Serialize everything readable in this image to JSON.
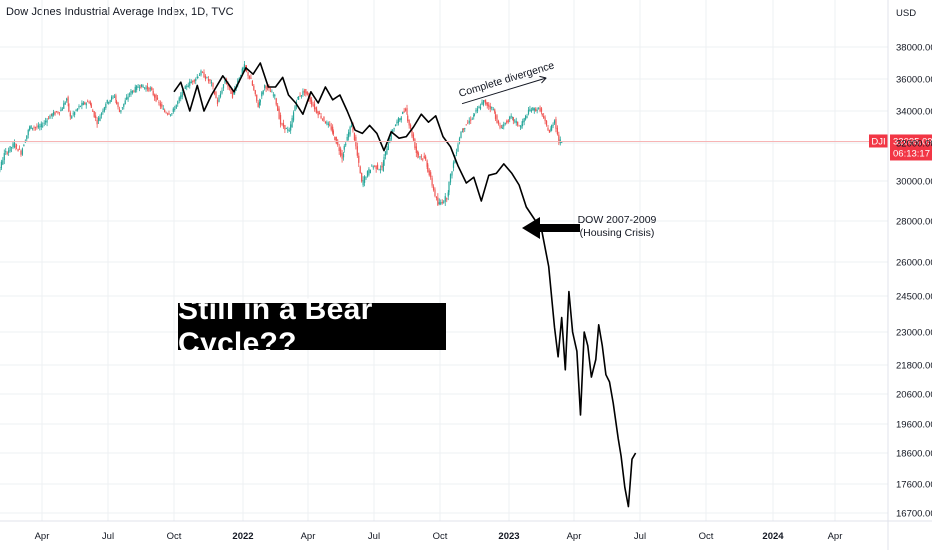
{
  "chart_data": {
    "type": "line",
    "title": "Dow Jones Industrial Average Index, 1D, TVC",
    "currency": "USD",
    "ticker": "DJI",
    "last_price": "32095.09",
    "countdown": "06:13:17",
    "y_ticks": [
      38000,
      36000,
      34000,
      32000,
      30000,
      28000,
      26000,
      24500,
      23000,
      21800,
      20600,
      19600,
      18600,
      17600,
      16700
    ],
    "y_tick_labels": [
      "38000.00",
      "36000.00",
      "34000.00",
      "32000.00",
      "30000.00",
      "28000.00",
      "26000.00",
      "24500.00",
      "23000.00",
      "21800.00",
      "20600.00",
      "19600.00",
      "18600.00",
      "17600.00",
      "16700.00"
    ],
    "x_ticks": [
      "Apr",
      "Jul",
      "Oct",
      "2022",
      "Apr",
      "Jul",
      "Oct",
      "2023",
      "Apr",
      "Jul",
      "Oct",
      "2024",
      "Apr"
    ],
    "x_tick_dates": [
      "2021-04-01",
      "2021-07-01",
      "2021-10-01",
      "2022-01-01",
      "2022-04-01",
      "2022-07-01",
      "2022-10-01",
      "2023-01-01",
      "2023-04-01",
      "2023-07-01",
      "2023-10-01",
      "2024-01-01",
      "2024-04-01"
    ],
    "series": [
      {
        "name": "",
        "style": "candles",
        "points": [
          [
            "2021-01-04",
            30300
          ],
          [
            "2021-01-15",
            30900
          ],
          [
            "2021-01-29",
            29980
          ],
          [
            "2021-02-10",
            31400
          ],
          [
            "2021-02-24",
            31950
          ],
          [
            "2021-03-05",
            31500
          ],
          [
            "2021-03-17",
            33000
          ],
          [
            "2021-03-31",
            32980
          ],
          [
            "2021-04-14",
            33700
          ],
          [
            "2021-04-29",
            34050
          ],
          [
            "2021-05-07",
            34780
          ],
          [
            "2021-05-12",
            33600
          ],
          [
            "2021-05-26",
            34350
          ],
          [
            "2021-06-07",
            34600
          ],
          [
            "2021-06-18",
            33300
          ],
          [
            "2021-06-30",
            34500
          ],
          [
            "2021-07-12",
            34950
          ],
          [
            "2021-07-19",
            33950
          ],
          [
            "2021-08-02",
            35100
          ],
          [
            "2021-08-16",
            35600
          ],
          [
            "2021-08-31",
            35350
          ],
          [
            "2021-09-10",
            34600
          ],
          [
            "2021-09-20",
            33950
          ],
          [
            "2021-09-30",
            33850
          ],
          [
            "2021-10-06",
            34400
          ],
          [
            "2021-10-20",
            35600
          ],
          [
            "2021-11-01",
            36050
          ],
          [
            "2021-11-08",
            36400
          ],
          [
            "2021-11-22",
            35700
          ],
          [
            "2021-11-30",
            34500
          ],
          [
            "2021-12-10",
            35950
          ],
          [
            "2021-12-20",
            34950
          ],
          [
            "2021-12-31",
            36350
          ],
          [
            "2022-01-05",
            36800
          ],
          [
            "2022-01-14",
            35900
          ],
          [
            "2022-01-24",
            34300
          ],
          [
            "2022-02-02",
            35600
          ],
          [
            "2022-02-16",
            34900
          ],
          [
            "2022-02-24",
            33200
          ],
          [
            "2022-03-08",
            32700
          ],
          [
            "2022-03-18",
            34700
          ],
          [
            "2022-03-29",
            35250
          ],
          [
            "2022-04-12",
            34200
          ],
          [
            "2022-04-27",
            33300
          ],
          [
            "2022-05-05",
            32900
          ],
          [
            "2022-05-20",
            31250
          ],
          [
            "2022-06-02",
            33200
          ],
          [
            "2022-06-16",
            29900
          ],
          [
            "2022-06-30",
            30800
          ],
          [
            "2022-07-14",
            30650
          ],
          [
            "2022-07-29",
            32850
          ],
          [
            "2022-08-16",
            34150
          ],
          [
            "2022-08-31",
            31500
          ],
          [
            "2022-09-13",
            31100
          ],
          [
            "2022-09-30",
            28800
          ],
          [
            "2022-10-12",
            29200
          ],
          [
            "2022-10-31",
            32700
          ],
          [
            "2022-11-15",
            33600
          ],
          [
            "2022-11-30",
            34600
          ],
          [
            "2022-12-13",
            34100
          ],
          [
            "2022-12-22",
            32900
          ],
          [
            "2023-01-06",
            33600
          ],
          [
            "2023-01-19",
            33000
          ],
          [
            "2023-02-01",
            34100
          ],
          [
            "2023-02-15",
            34100
          ],
          [
            "2023-02-28",
            32650
          ],
          [
            "2023-03-07",
            33450
          ],
          [
            "2023-03-13",
            32100
          ],
          [
            "2023-03-17",
            32095
          ]
        ]
      },
      {
        "name": "DOW 2007-2009",
        "style": "line",
        "points": [
          [
            "2021-10-01",
            35200
          ],
          [
            "2021-10-10",
            35800
          ],
          [
            "2021-10-22",
            34000
          ],
          [
            "2021-11-01",
            35600
          ],
          [
            "2021-11-10",
            34000
          ],
          [
            "2021-11-20",
            35000
          ],
          [
            "2021-12-05",
            36200
          ],
          [
            "2021-12-20",
            35200
          ],
          [
            "2022-01-05",
            36700
          ],
          [
            "2022-01-15",
            36300
          ],
          [
            "2022-01-25",
            37000
          ],
          [
            "2022-02-05",
            35500
          ],
          [
            "2022-02-15",
            35500
          ],
          [
            "2022-02-25",
            36100
          ],
          [
            "2022-03-05",
            35000
          ],
          [
            "2022-03-15",
            34500
          ],
          [
            "2022-03-25",
            33800
          ],
          [
            "2022-04-05",
            35200
          ],
          [
            "2022-04-15",
            34500
          ],
          [
            "2022-04-25",
            35500
          ],
          [
            "2022-05-05",
            34700
          ],
          [
            "2022-05-15",
            35000
          ],
          [
            "2022-05-25",
            34000
          ],
          [
            "2022-06-05",
            32800
          ],
          [
            "2022-06-15",
            32600
          ],
          [
            "2022-06-25",
            33100
          ],
          [
            "2022-07-05",
            32600
          ],
          [
            "2022-07-15",
            31600
          ],
          [
            "2022-07-25",
            32700
          ],
          [
            "2022-08-05",
            32300
          ],
          [
            "2022-08-15",
            32400
          ],
          [
            "2022-08-25",
            33000
          ],
          [
            "2022-09-05",
            33800
          ],
          [
            "2022-09-15",
            33300
          ],
          [
            "2022-09-25",
            33700
          ],
          [
            "2022-10-05",
            32400
          ],
          [
            "2022-10-15",
            31800
          ],
          [
            "2022-10-25",
            30800
          ],
          [
            "2022-11-05",
            29900
          ],
          [
            "2022-11-15",
            30200
          ],
          [
            "2022-11-25",
            29000
          ],
          [
            "2022-12-05",
            30300
          ],
          [
            "2022-12-15",
            30400
          ],
          [
            "2022-12-25",
            30900
          ],
          [
            "2023-01-05",
            30400
          ],
          [
            "2023-01-15",
            29800
          ],
          [
            "2023-01-25",
            28700
          ],
          [
            "2023-02-05",
            28100
          ],
          [
            "2023-02-15",
            27600
          ],
          [
            "2023-02-25",
            25800
          ],
          [
            "2023-03-05",
            23200
          ],
          [
            "2023-03-10",
            22100
          ],
          [
            "2023-03-15",
            23600
          ],
          [
            "2023-03-20",
            21600
          ],
          [
            "2023-03-25",
            24700
          ],
          [
            "2023-03-30",
            23000
          ],
          [
            "2023-04-05",
            22300
          ],
          [
            "2023-04-10",
            19900
          ],
          [
            "2023-04-15",
            23000
          ],
          [
            "2023-04-20",
            22500
          ],
          [
            "2023-04-25",
            21300
          ],
          [
            "2023-05-01",
            22000
          ],
          [
            "2023-05-05",
            23300
          ],
          [
            "2023-05-10",
            22500
          ],
          [
            "2023-05-15",
            21400
          ],
          [
            "2023-05-20",
            21100
          ],
          [
            "2023-05-25",
            20300
          ],
          [
            "2023-06-01",
            19100
          ],
          [
            "2023-06-05",
            18500
          ],
          [
            "2023-06-10",
            17500
          ],
          [
            "2023-06-15",
            16900
          ],
          [
            "2023-06-20",
            18400
          ],
          [
            "2023-06-25",
            18600
          ]
        ]
      }
    ],
    "annotations": [
      {
        "text": "Complete divergence"
      },
      {
        "text": "DOW 2007-2009"
      },
      {
        "text": "(Housing Crisis)"
      }
    ]
  },
  "headline": "Still in a Bear Cycle??",
  "colors": {
    "up": "#26a69a",
    "down": "#ef5350",
    "price_line": "#f7b5b5",
    "badge": "#f23645",
    "grid": "#eef0f3",
    "overlay_line": "#000000"
  }
}
